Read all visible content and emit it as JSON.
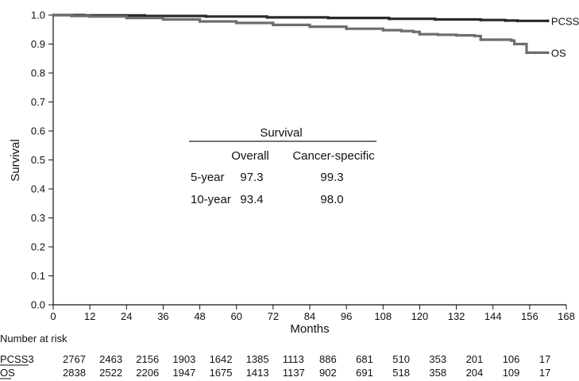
{
  "chart_data": {
    "type": "line",
    "xlabel": "Months",
    "ylabel": "Survival",
    "xlim": [
      0,
      168
    ],
    "ylim": [
      0,
      1.0
    ],
    "x_ticks": [
      "0",
      "12",
      "24",
      "36",
      "48",
      "60",
      "72",
      "84",
      "96",
      "108",
      "120",
      "132",
      "144",
      "156",
      "168"
    ],
    "y_ticks": [
      "0.0",
      "0.1",
      "0.2",
      "0.3",
      "0.4",
      "0.5",
      "0.6",
      "0.7",
      "0.8",
      "0.9",
      "1.0"
    ],
    "grid": false,
    "series": [
      {
        "name": "PCSS",
        "color": "#2a2a2a",
        "x": [
          0,
          10,
          30,
          50,
          70,
          90,
          110,
          125,
          140,
          148,
          152,
          162
        ],
        "y": [
          1.0,
          0.999,
          0.997,
          0.995,
          0.992,
          0.99,
          0.987,
          0.985,
          0.983,
          0.981,
          0.98,
          0.98
        ]
      },
      {
        "name": "OS",
        "color": "#6e6e6e",
        "x": [
          0,
          6,
          12,
          24,
          36,
          48,
          60,
          72,
          84,
          96,
          108,
          114,
          118,
          120,
          126,
          132,
          138,
          140,
          146,
          150,
          151,
          154,
          155,
          162
        ],
        "y": [
          1.0,
          0.997,
          0.995,
          0.99,
          0.985,
          0.978,
          0.973,
          0.966,
          0.96,
          0.953,
          0.948,
          0.945,
          0.942,
          0.934,
          0.932,
          0.93,
          0.928,
          0.915,
          0.915,
          0.912,
          0.9,
          0.9,
          0.87,
          0.87
        ]
      }
    ],
    "inset_table": {
      "title": "Survival",
      "columns": [
        "Overall",
        "Cancer-specific"
      ],
      "rows": [
        {
          "label": "5-year",
          "values": [
            "97.3",
            "99.3"
          ]
        },
        {
          "label": "10-year",
          "values": [
            "93.4",
            "98.0"
          ]
        }
      ]
    },
    "risk_table": {
      "title": "Number at risk",
      "rows": [
        {
          "label": "PCSS3",
          "values": [
            "2767",
            "2463",
            "2156",
            "1903",
            "1642",
            "1385",
            "1113",
            "886",
            "681",
            "510",
            "353",
            "201",
            "106",
            "17"
          ]
        },
        {
          "label": "OS",
          "values": [
            "2838",
            "2522",
            "2206",
            "1947",
            "1675",
            "1413",
            "1137",
            "902",
            "691",
            "518",
            "358",
            "204",
            "109",
            "17"
          ]
        }
      ]
    }
  }
}
